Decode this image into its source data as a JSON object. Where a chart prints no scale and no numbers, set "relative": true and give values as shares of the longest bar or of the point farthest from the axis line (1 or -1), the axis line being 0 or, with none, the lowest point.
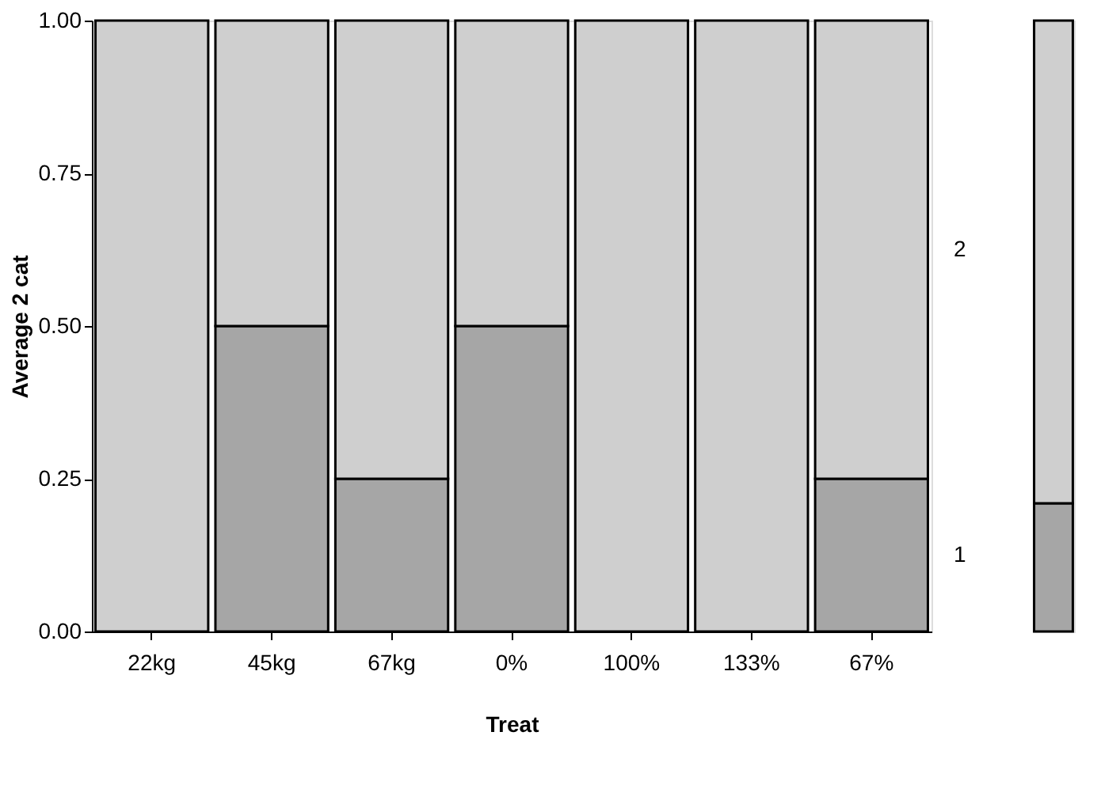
{
  "chart_data": [
    {
      "type": "bar",
      "stacked": true,
      "xlabel": "Treat",
      "ylabel": "Average 2 cat",
      "legend": false,
      "grid": false,
      "categories": [
        "22kg",
        "45kg",
        "67kg",
        "0%",
        "100%",
        "133%",
        "67%"
      ],
      "ylim": [
        0,
        1
      ],
      "yticks": [
        {
          "value": 0,
          "label": "0.00"
        },
        {
          "value": 0.25,
          "label": "0.25"
        },
        {
          "value": 0.5,
          "label": "0.50"
        },
        {
          "value": 0.75,
          "label": "0.75"
        },
        {
          "value": 1,
          "label": "1.00"
        }
      ],
      "series": [
        {
          "name": "1",
          "color": "#a6a6a6",
          "values": [
            0,
            0.5,
            0.25,
            0.5,
            0,
            0,
            0.25
          ]
        },
        {
          "name": "2",
          "color": "#cfcfcf",
          "values": [
            1,
            0.5,
            0.75,
            0.5,
            1,
            1,
            0.75
          ]
        }
      ]
    },
    {
      "type": "bar",
      "stacked": true,
      "relative": true,
      "categories": [
        null
      ],
      "series": [
        {
          "color": "#a6a6a6",
          "values": [
            0.21
          ]
        },
        {
          "color": "#cfcfcf",
          "values": [
            0.79
          ]
        }
      ]
    }
  ]
}
